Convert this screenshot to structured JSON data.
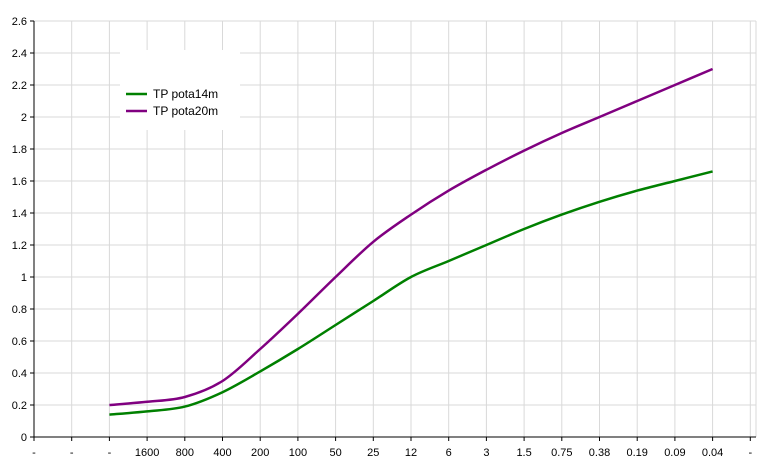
{
  "chart_data": {
    "type": "line",
    "title": "",
    "xlabel": "",
    "ylabel": "",
    "grid": true,
    "legend_position": "top-left",
    "categories": [
      "-",
      "-",
      "-",
      "1600",
      "800",
      "400",
      "200",
      "100",
      "50",
      "25",
      "12",
      "6",
      "3",
      "1.5",
      "0.75",
      "0.38",
      "0.19",
      "0.09",
      "0.04",
      "-"
    ],
    "y_ticks": [
      "0",
      "0.2",
      "0.4",
      "0.6",
      "0.8",
      "1",
      "1.2",
      "1.4",
      "1.6",
      "1.8",
      "2",
      "2.2",
      "2.4",
      "2.6"
    ],
    "ylim": [
      0,
      2.6
    ],
    "series": [
      {
        "name": "TP pota14m",
        "color": "#008000",
        "values": [
          null,
          null,
          0.14,
          0.16,
          0.19,
          0.28,
          0.41,
          0.55,
          0.7,
          0.85,
          1.0,
          1.1,
          1.2,
          1.3,
          1.39,
          1.47,
          1.54,
          1.6,
          1.66,
          null
        ]
      },
      {
        "name": "TP pota20m",
        "color": "#800080",
        "values": [
          null,
          null,
          0.2,
          0.22,
          0.25,
          0.35,
          0.55,
          0.77,
          1.0,
          1.22,
          1.39,
          1.54,
          1.67,
          1.79,
          1.9,
          2.0,
          2.1,
          2.2,
          2.3,
          null
        ]
      }
    ]
  }
}
